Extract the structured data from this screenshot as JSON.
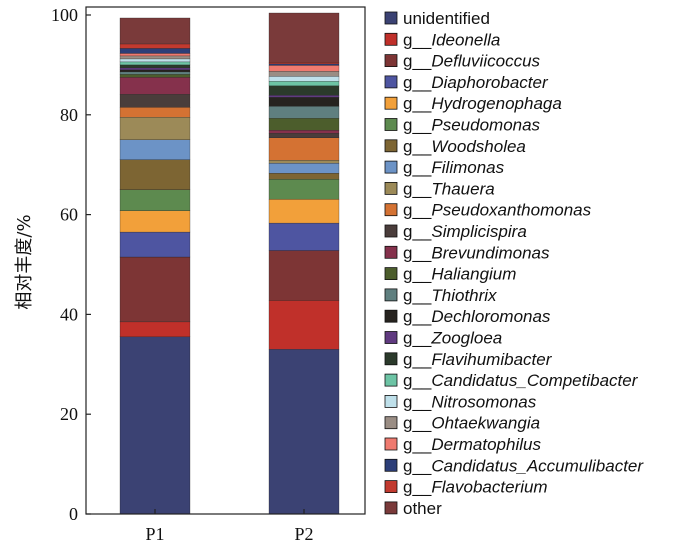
{
  "chart_data": {
    "type": "bar",
    "stacked": true,
    "categories": [
      "P1",
      "P2"
    ],
    "ylabel": "相对丰度/%",
    "ylim": [
      0,
      100
    ],
    "yticks": [
      "0",
      "20",
      "40",
      "60",
      "80",
      "100"
    ],
    "grid": false,
    "legend_position": "right",
    "series": [
      {
        "name": "unidentified",
        "prefix": "",
        "genus": "",
        "color": "#3b4273",
        "values": [
          35.5,
          33.0
        ]
      },
      {
        "name": "g__Ideonella",
        "prefix": "g__",
        "genus": "Ideonella",
        "color": "#c0302a",
        "values": [
          3.0,
          9.8
        ]
      },
      {
        "name": "g__Defluviicoccus",
        "prefix": "g__",
        "genus": "Defluviicoccus",
        "color": "#7d3535",
        "values": [
          13.0,
          10.0
        ]
      },
      {
        "name": "g__Diaphorobacter",
        "prefix": "g__",
        "genus": "Diaphorobacter",
        "color": "#4e55a1",
        "values": [
          5.0,
          5.5
        ]
      },
      {
        "name": "g__Hydrogenophaga",
        "prefix": "g__",
        "genus": "Hydrogenophaga",
        "color": "#f2a03a",
        "values": [
          4.3,
          4.8
        ]
      },
      {
        "name": "g__Pseudomonas",
        "prefix": "g__",
        "genus": "Pseudomonas",
        "color": "#5d8a4f",
        "values": [
          4.2,
          4.0
        ]
      },
      {
        "name": "g__Woodsholea",
        "prefix": "g__",
        "genus": "Woodsholea",
        "color": "#7d6533",
        "values": [
          6.0,
          1.2
        ]
      },
      {
        "name": "g__Filimonas",
        "prefix": "g__",
        "genus": "Filimonas",
        "color": "#6c93c6",
        "values": [
          4.0,
          2.0
        ]
      },
      {
        "name": "g__Thauera",
        "prefix": "g__",
        "genus": "Thauera",
        "color": "#9c8a58",
        "values": [
          4.5,
          0.6
        ]
      },
      {
        "name": "g__Pseudoxanthomonas",
        "prefix": "g__",
        "genus": "Pseudoxanthomonas",
        "color": "#d47233",
        "values": [
          2.0,
          4.5
        ]
      },
      {
        "name": "g__Simplicispira",
        "prefix": "g__",
        "genus": "Simplicispira",
        "color": "#4a3d3b",
        "values": [
          2.6,
          0.9
        ]
      },
      {
        "name": "g__Brevundimonas",
        "prefix": "g__",
        "genus": "Brevundimonas",
        "color": "#85314c",
        "values": [
          3.4,
          0.6
        ]
      },
      {
        "name": "g__Haliangium",
        "prefix": "g__",
        "genus": "Haliangium",
        "color": "#4c5d2c",
        "values": [
          0.6,
          2.4
        ]
      },
      {
        "name": "g__Thiothrix",
        "prefix": "g__",
        "genus": "Thiothrix",
        "color": "#5f7f7f",
        "values": [
          0.5,
          2.4
        ]
      },
      {
        "name": "g__Dechloromonas",
        "prefix": "g__",
        "genus": "Dechloromonas",
        "color": "#26231f",
        "values": [
          0.4,
          1.8
        ]
      },
      {
        "name": "g__Zoogloea",
        "prefix": "g__",
        "genus": "Zoogloea",
        "color": "#603a80",
        "values": [
          0.4,
          0.4
        ]
      },
      {
        "name": "g__Flavihumibacter",
        "prefix": "g__",
        "genus": "Flavihumibacter",
        "color": "#2b3a2b",
        "values": [
          0.6,
          1.9
        ]
      },
      {
        "name": "g__Candidatus_Competibacter",
        "prefix": "g__",
        "genus": "Candidatus_Competibacter",
        "color": "#6dc4a5",
        "values": [
          0.6,
          0.9
        ]
      },
      {
        "name": "g__Nitrosomonas",
        "prefix": "g__",
        "genus": "Nitrosomonas",
        "color": "#bfe0ea",
        "values": [
          0.6,
          1.0
        ]
      },
      {
        "name": "g__Ohtaekwangia",
        "prefix": "g__",
        "genus": "Ohtaekwangia",
        "color": "#9a8d84",
        "values": [
          0.6,
          1.0
        ]
      },
      {
        "name": "g__Dermatophilus",
        "prefix": "g__",
        "genus": "Dermatophilus",
        "color": "#ef7a6f",
        "values": [
          0.5,
          1.2
        ]
      },
      {
        "name": "g__Candidatus_Accumulibacter",
        "prefix": "g__",
        "genus": "Candidatus_Accumulibacter",
        "color": "#2c3e78",
        "values": [
          1.0,
          0.3
        ]
      },
      {
        "name": "g__Flavobacterium",
        "prefix": "g__",
        "genus": "Flavobacterium",
        "color": "#c23a2f",
        "values": [
          0.9,
          0.3
        ]
      },
      {
        "name": "other",
        "prefix": "",
        "genus": "",
        "color": "#7a3a3a",
        "values": [
          5.2,
          9.9
        ]
      }
    ]
  }
}
